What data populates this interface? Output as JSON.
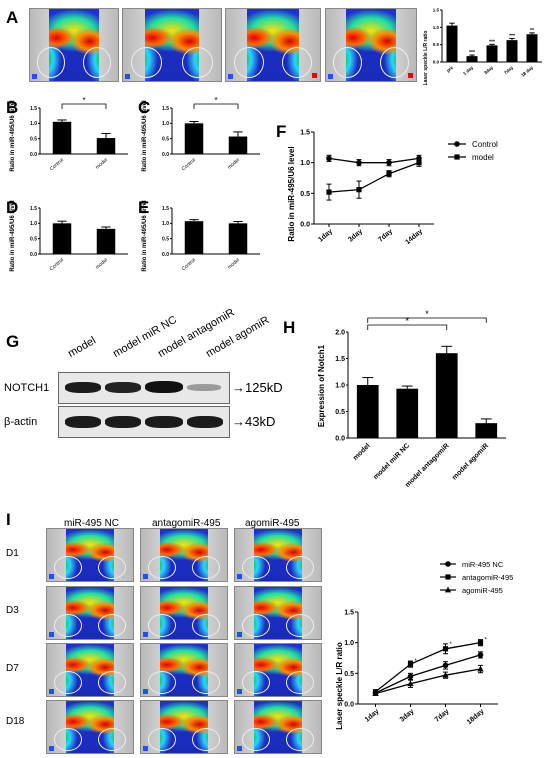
{
  "panels": {
    "A": "A",
    "B": "B",
    "C": "C",
    "D": "D",
    "E": "E",
    "F": "F",
    "G": "G",
    "H": "H",
    "I": "I"
  },
  "panelA": {
    "markers_top": [
      "1",
      "1",
      "1",
      "1"
    ],
    "chart_ylabel": "Laser speckle L/R ratio",
    "chart_ytick_labels": [
      "0.0",
      "0.5",
      "1.0",
      "1.5"
    ],
    "sig_labels": [
      "***",
      "***",
      "***",
      "**"
    ]
  },
  "small_bar": {
    "ylabel": "Ratio in miR-495/U6 level",
    "ytick_labels": [
      "0.0",
      "0.5",
      "1.0",
      "1.5"
    ],
    "sig_label": "*"
  },
  "panelF": {
    "ylabel": "Ratio in miR-495/U6 level",
    "ytick_labels": [
      "0.0",
      "0.5",
      "1.0",
      "1.5"
    ],
    "legend": [
      "Control",
      "model"
    ]
  },
  "panelG": {
    "lanes": [
      "model",
      "model miR NC",
      "model antagomiR",
      "model agomiR"
    ],
    "rows": [
      {
        "label": "NOTCH1",
        "size": "→125kD"
      },
      {
        "label": "β-actin",
        "size": "→43kD"
      }
    ]
  },
  "panelH": {
    "ylabel": "Expression of Notch1",
    "ytick_labels": [
      "0.0",
      "0.5",
      "1.0",
      "1.5",
      "2.0"
    ],
    "sig_labels": [
      "*",
      "*"
    ]
  },
  "panelI": {
    "groups": [
      "miR-495 NC",
      "antagomiR-495",
      "agomiR-495"
    ],
    "days": [
      "D1",
      "D3",
      "D7",
      "D18"
    ],
    "ylabel": "Laser speckle L/R ratio",
    "ytick_labels": [
      "0.0",
      "0.5",
      "1.0",
      "1.5"
    ],
    "legend": [
      "miR-495 NC",
      "antagomiR-495",
      "agomiR-495"
    ],
    "sig_labels": [
      "*",
      "*",
      "*"
    ]
  },
  "chart_data": [
    {
      "id": "A-chart",
      "type": "bar",
      "categories": [
        "pre",
        "1 day",
        "3day",
        "7day",
        "18 day"
      ],
      "values": [
        1.05,
        0.17,
        0.48,
        0.63,
        0.8
      ],
      "errors": [
        0.07,
        0.03,
        0.03,
        0.05,
        0.04
      ],
      "ylim": [
        0,
        1.5
      ]
    },
    {
      "id": "B-chart",
      "type": "bar",
      "categories": [
        "Control",
        "model"
      ],
      "values": [
        1.05,
        0.52
      ],
      "errors": [
        0.06,
        0.15
      ],
      "ylim": [
        0,
        1.5
      ]
    },
    {
      "id": "C-chart",
      "type": "bar",
      "categories": [
        "Control",
        "model"
      ],
      "values": [
        1.0,
        0.57
      ],
      "errors": [
        0.06,
        0.15
      ],
      "ylim": [
        0,
        1.5
      ]
    },
    {
      "id": "D-chart",
      "type": "bar",
      "categories": [
        "Control",
        "model"
      ],
      "values": [
        1.0,
        0.82
      ],
      "errors": [
        0.07,
        0.06
      ],
      "ylim": [
        0,
        1.5
      ]
    },
    {
      "id": "E-chart",
      "type": "bar",
      "categories": [
        "Control",
        "model"
      ],
      "values": [
        1.07,
        1.0
      ],
      "errors": [
        0.05,
        0.06
      ],
      "ylim": [
        0,
        1.5
      ]
    },
    {
      "id": "F-chart",
      "type": "line",
      "categories": [
        "1day",
        "3day",
        "7day",
        "14day"
      ],
      "series": [
        {
          "name": "Control",
          "values": [
            1.07,
            1.0,
            1.0,
            1.07
          ],
          "errors": [
            0.05,
            0.05,
            0.05,
            0.05
          ]
        },
        {
          "name": "model",
          "values": [
            0.52,
            0.56,
            0.82,
            1.0
          ],
          "errors": [
            0.13,
            0.14,
            0.05,
            0.06
          ]
        }
      ],
      "ylim": [
        0,
        1.5
      ]
    },
    {
      "id": "H-chart",
      "type": "bar",
      "categories": [
        "model",
        "model miR NC",
        "model antagomiR",
        "model agomiR"
      ],
      "values": [
        1.0,
        0.93,
        1.6,
        0.28
      ],
      "errors": [
        0.14,
        0.05,
        0.13,
        0.08
      ],
      "ylim": [
        0,
        2.0
      ]
    },
    {
      "id": "I-chart",
      "type": "line",
      "categories": [
        "1day",
        "3day",
        "7day",
        "18day"
      ],
      "series": [
        {
          "name": "miR-495 NC",
          "values": [
            0.18,
            0.45,
            0.63,
            0.8
          ],
          "errors": [
            0.03,
            0.05,
            0.06,
            0.05
          ]
        },
        {
          "name": "antagomiR-495",
          "values": [
            0.2,
            0.65,
            0.9,
            1.0
          ],
          "errors": [
            0.03,
            0.05,
            0.08,
            0.05
          ]
        },
        {
          "name": "agomiR-495",
          "values": [
            0.17,
            0.33,
            0.47,
            0.57
          ],
          "errors": [
            0.03,
            0.06,
            0.05,
            0.06
          ]
        }
      ],
      "ylim": [
        0,
        1.5
      ]
    }
  ]
}
